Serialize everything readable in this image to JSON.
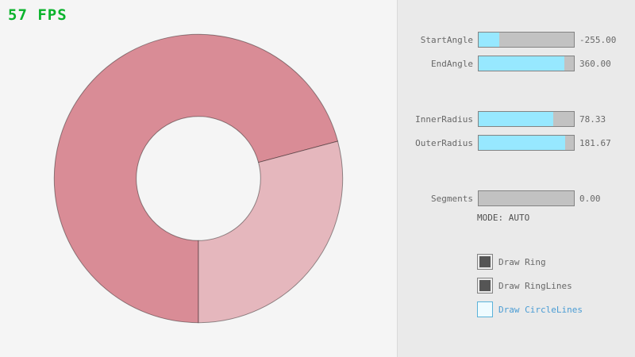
{
  "fps": "57 FPS",
  "colors": {
    "bg": "#f5f5f5",
    "panel-bg": "#eaeaea",
    "divider": "#d9d9d9",
    "fps-green": "#0ab32c",
    "text": "#686868",
    "mode-text": "#505050",
    "slider-border": "#838383",
    "slider-track": "#c2c2c2",
    "slider-fill": "#97e8ff",
    "check-border": "#838383",
    "check-mark": "#555555",
    "focus-border": "#5bb2d9",
    "focus-bg": "#effbff",
    "focus-text": "#4a9cd4",
    "ring-dark": "#d98c96",
    "ring-light": "#e5b7bd",
    "ring-line": "rgba(0,0,0,0.4)"
  },
  "ring": {
    "start_angle": "-255.00",
    "end_angle": "360.00",
    "inner_radius": "78.33",
    "outer_radius": "181.67",
    "segments": "0.00"
  },
  "panel": {
    "sliders": [
      {
        "label": "StartAngle",
        "value": "-255.00",
        "fill_pct": 21.7
      },
      {
        "label": "EndAngle",
        "value": "360.00",
        "fill_pct": 90
      },
      {
        "label": "InnerRadius",
        "value": "78.33",
        "fill_pct": 78.3
      },
      {
        "label": "OuterRadius",
        "value": "181.67",
        "fill_pct": 90.8
      },
      {
        "label": "Segments",
        "value": "0.00",
        "fill_pct": 0
      }
    ],
    "mode_text": "MODE: AUTO",
    "checkboxes": [
      {
        "label": "Draw Ring",
        "checked": true,
        "focused": false
      },
      {
        "label": "Draw RingLines",
        "checked": true,
        "focused": false
      },
      {
        "label": "Draw CircleLines",
        "checked": false,
        "focused": true
      }
    ]
  }
}
